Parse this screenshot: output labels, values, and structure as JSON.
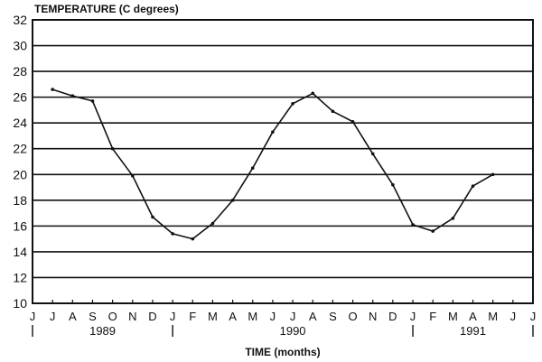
{
  "chart_data": {
    "type": "line",
    "title": "TEMPERATURE (C degrees)",
    "xlabel": "TIME (months)",
    "ylabel": "TEMPERATURE (C degrees)",
    "ylim": [
      10,
      32
    ],
    "yticks": [
      10,
      12,
      14,
      16,
      18,
      20,
      22,
      24,
      26,
      28,
      30,
      32
    ],
    "grid": "horizontal",
    "legend": null,
    "x_tick_labels": [
      "J",
      "J",
      "A",
      "S",
      "O",
      "N",
      "D",
      "J",
      "F",
      "M",
      "A",
      "M",
      "J",
      "J",
      "A",
      "S",
      "O",
      "N",
      "D",
      "J",
      "F",
      "M",
      "A",
      "M",
      "J",
      "J"
    ],
    "year_labels": [
      {
        "label": "1989",
        "center_index": 3.5
      },
      {
        "label": "1990",
        "center_index": 13
      },
      {
        "label": "1991",
        "center_index": 22
      }
    ],
    "year_separators_at_index": [
      0,
      7,
      19,
      25
    ],
    "categories": [
      "Jul 1989",
      "Aug 1989",
      "Sep 1989",
      "Oct 1989",
      "Nov 1989",
      "Dec 1989",
      "Jan 1990",
      "Feb 1990",
      "Mar 1990",
      "Apr 1990",
      "May 1990",
      "Jun 1990",
      "Jul 1990",
      "Aug 1990",
      "Sep 1990",
      "Oct 1990",
      "Nov 1990",
      "Dec 1990",
      "Jan 1991",
      "Feb 1991",
      "Mar 1991",
      "Apr 1991",
      "May 1991"
    ],
    "x_index": [
      1,
      2,
      3,
      4,
      5,
      6,
      7,
      8,
      9,
      10,
      11,
      12,
      13,
      14,
      15,
      16,
      17,
      18,
      19,
      20,
      21,
      22,
      23
    ],
    "series": [
      {
        "name": "Temperature",
        "values": [
          26.6,
          26.1,
          25.7,
          22.0,
          19.9,
          16.7,
          15.4,
          15.0,
          16.2,
          18.0,
          20.5,
          23.3,
          25.5,
          26.3,
          24.9,
          24.1,
          21.6,
          19.2,
          16.1,
          15.6,
          16.6,
          19.1,
          20.0
        ],
        "color": "#111111"
      }
    ]
  }
}
